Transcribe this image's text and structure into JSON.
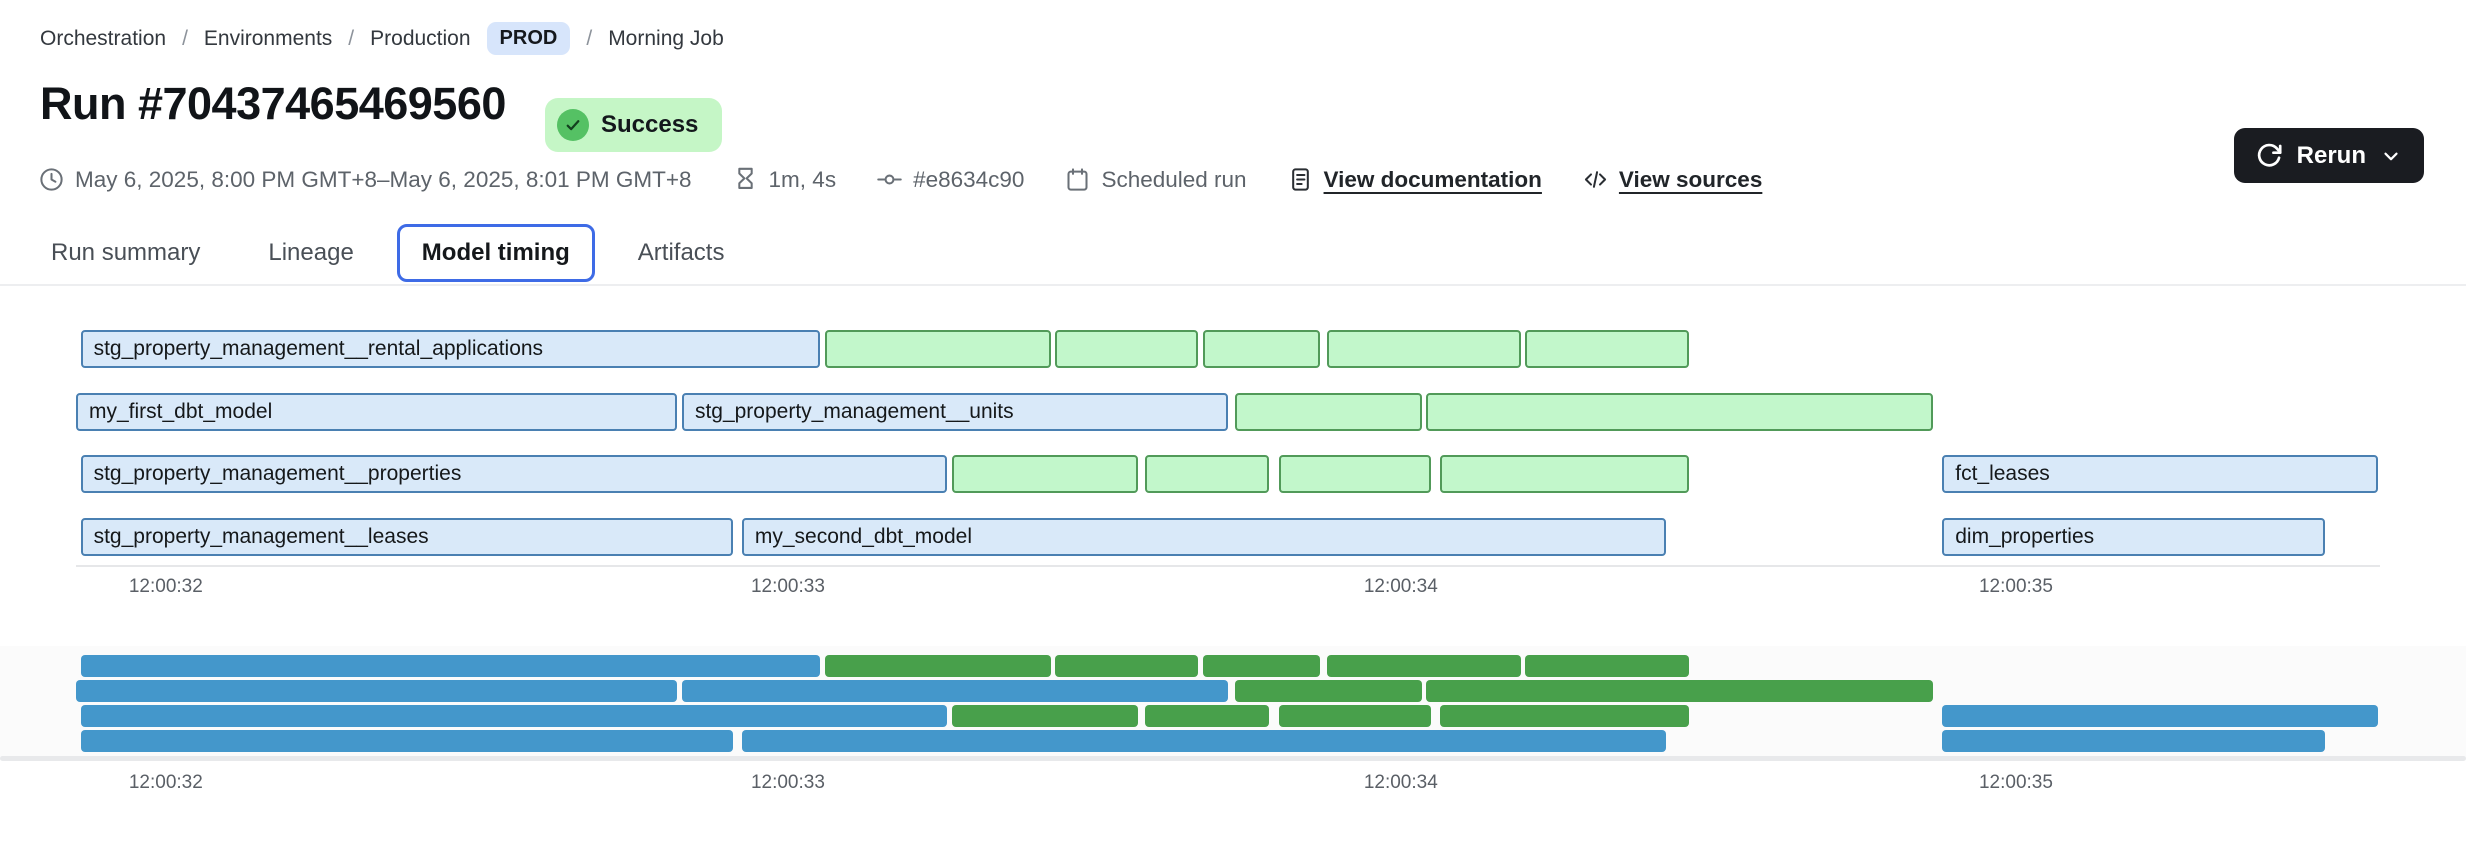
{
  "breadcrumb": {
    "items": [
      "Orchestration",
      "Environments",
      "Production",
      "Morning Job"
    ],
    "env_badge": "PROD"
  },
  "header": {
    "title": "Run #70437465469560",
    "status": "Success",
    "rerun_label": "Rerun",
    "meta": {
      "time_range": "May 6, 2025, 8:00 PM GMT+8–May 6, 2025, 8:01 PM GMT+8",
      "duration": "1m, 4s",
      "commit": "#e8634c90",
      "trigger": "Scheduled run",
      "doc_link": "View documentation",
      "sources_link": "View sources"
    }
  },
  "tabs": [
    {
      "label": "Run summary",
      "active": false
    },
    {
      "label": "Lineage",
      "active": false
    },
    {
      "label": "Model timing",
      "active": true
    },
    {
      "label": "Artifacts",
      "active": false
    }
  ],
  "colors": {
    "accent_blue": "#3e6be6",
    "prod_badge_bg": "#d7e5fb",
    "success_bg": "#c5f6c6",
    "success_icon": "#55c164",
    "rerun_bg": "#1a1c21"
  },
  "chart_data": {
    "type": "gantt",
    "title": "Model timing",
    "views": [
      "detail (outlined, labeled)",
      "minimap (solid, unlabeled)"
    ],
    "x_axis": {
      "ticks": [
        {
          "label": "12:00:32",
          "pct": 3.9
        },
        {
          "label": "12:00:33",
          "pct": 30.9
        },
        {
          "label": "12:00:34",
          "pct": 57.5
        },
        {
          "label": "12:00:35",
          "pct": 84.2
        }
      ]
    },
    "colors": {
      "model_fill": "#d9e9f9",
      "model_border": "#4a80b2",
      "test_fill": "#c2f7cb",
      "test_border": "#519a59",
      "model_solid": "#4497cb",
      "test_solid": "#48a04b"
    },
    "rows": [
      {
        "segments": [
          {
            "name": "stg_property_management__rental_applications",
            "color": "blue",
            "start_pct": 0.2,
            "end_pct": 32.3,
            "start_time": "12:00:31.9",
            "end_time": "12:00:33.1"
          },
          {
            "name": "",
            "color": "green",
            "start_pct": 32.5,
            "end_pct": 42.3,
            "start_time": "12:00:33.1",
            "end_time": "12:00:33.4"
          },
          {
            "name": "",
            "color": "green",
            "start_pct": 42.5,
            "end_pct": 48.7,
            "start_time": "12:00:33.4",
            "end_time": "12:00:33.7"
          },
          {
            "name": "",
            "color": "green",
            "start_pct": 48.9,
            "end_pct": 54.0,
            "start_time": "12:00:33.7",
            "end_time": "12:00:33.9"
          },
          {
            "name": "",
            "color": "green",
            "start_pct": 54.3,
            "end_pct": 62.7,
            "start_time": "12:00:33.9",
            "end_time": "12:00:34.2"
          },
          {
            "name": "",
            "color": "green",
            "start_pct": 62.9,
            "end_pct": 70.0,
            "start_time": "12:00:34.2",
            "end_time": "12:00:34.5"
          }
        ]
      },
      {
        "segments": [
          {
            "name": "my_first_dbt_model",
            "color": "blue",
            "start_pct": 0.0,
            "end_pct": 26.1,
            "start_time": "12:00:31.9",
            "end_time": "12:00:32.8"
          },
          {
            "name": "stg_property_management__units",
            "color": "blue",
            "start_pct": 26.3,
            "end_pct": 50.0,
            "start_time": "12:00:32.8",
            "end_time": "12:00:33.7"
          },
          {
            "name": "",
            "color": "green",
            "start_pct": 50.3,
            "end_pct": 58.4,
            "start_time": "12:00:33.7",
            "end_time": "12:00:34.0"
          },
          {
            "name": "",
            "color": "green",
            "start_pct": 58.6,
            "end_pct": 80.6,
            "start_time": "12:00:34.0",
            "end_time": "12:00:34.9"
          }
        ]
      },
      {
        "segments": [
          {
            "name": "stg_property_management__properties",
            "color": "blue",
            "start_pct": 0.2,
            "end_pct": 37.8,
            "start_time": "12:00:31.9",
            "end_time": "12:00:33.3"
          },
          {
            "name": "",
            "color": "green",
            "start_pct": 38.0,
            "end_pct": 46.1,
            "start_time": "12:00:33.3",
            "end_time": "12:00:33.6"
          },
          {
            "name": "",
            "color": "green",
            "start_pct": 46.4,
            "end_pct": 51.8,
            "start_time": "12:00:33.6",
            "end_time": "12:00:33.8"
          },
          {
            "name": "",
            "color": "green",
            "start_pct": 52.2,
            "end_pct": 58.8,
            "start_time": "12:00:33.8",
            "end_time": "12:00:34.1"
          },
          {
            "name": "",
            "color": "green",
            "start_pct": 59.2,
            "end_pct": 70.0,
            "start_time": "12:00:34.1",
            "end_time": "12:00:34.5"
          },
          {
            "name": "fct_leases",
            "color": "blue",
            "start_pct": 81.0,
            "end_pct": 99.9,
            "start_time": "12:00:34.9",
            "end_time": "12:00:35.6"
          }
        ]
      },
      {
        "segments": [
          {
            "name": "stg_property_management__leases",
            "color": "blue",
            "start_pct": 0.2,
            "end_pct": 28.5,
            "start_time": "12:00:31.9",
            "end_time": "12:00:32.9"
          },
          {
            "name": "my_second_dbt_model",
            "color": "blue",
            "start_pct": 28.9,
            "end_pct": 69.0,
            "start_time": "12:00:32.9",
            "end_time": "12:00:34.4"
          },
          {
            "name": "dim_properties",
            "color": "blue",
            "start_pct": 81.0,
            "end_pct": 97.6,
            "start_time": "12:00:34.9",
            "end_time": "12:00:35.5"
          }
        ]
      }
    ]
  }
}
